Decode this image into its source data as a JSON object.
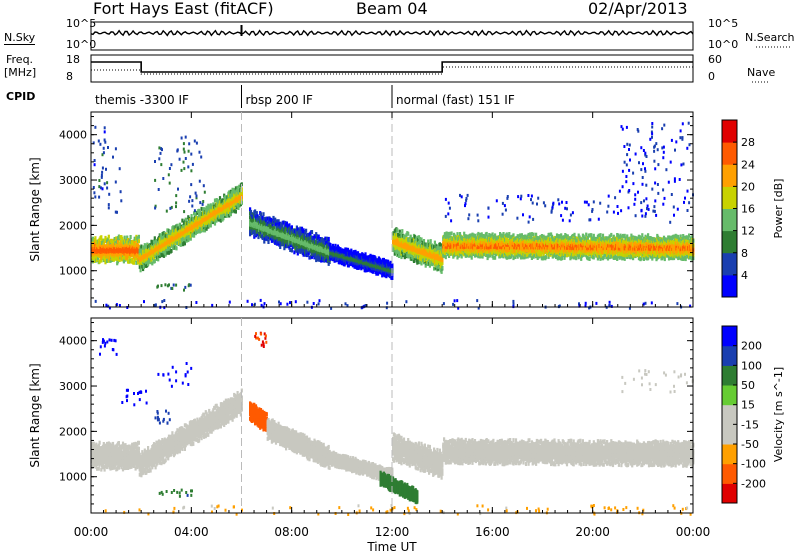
{
  "header": {
    "station": "Fort Hays East (fitACF)",
    "beam": "Beam 04",
    "date": "02/Apr/2013"
  },
  "noise_panel": {
    "left_label": "N.Sky",
    "right_label": "N.Search",
    "left_ticks": [
      "10^5",
      "10^0"
    ],
    "right_ticks": [
      "10^5",
      "10^0"
    ]
  },
  "freq_panel": {
    "left_label_line1": "Freq.",
    "left_label_line2": "[MHz]",
    "right_label": "Nave",
    "left_ticks": [
      "18",
      "8"
    ],
    "right_ticks": [
      "60",
      "0"
    ],
    "cpid_label": "CPID"
  },
  "cpid_segments": [
    {
      "label": "themis -3300 IF",
      "start_hour": 0,
      "end_hour": 6
    },
    {
      "label": "rbsp 200 IF",
      "start_hour": 6,
      "end_hour": 12
    },
    {
      "label": "normal (fast) 151 IF",
      "start_hour": 12,
      "end_hour": 24
    }
  ],
  "colors": {
    "power": [
      "#0000ff",
      "#1a3fb0",
      "#2e7d32",
      "#66bb6a",
      "#c8d200",
      "#ffa000",
      "#ff5a00",
      "#e00000"
    ],
    "velocity": [
      "#e00000",
      "#ff5a00",
      "#ffa000",
      "#c8c8c0",
      "#c8c8c0",
      "#66cc33",
      "#2e7d32",
      "#1a3fb0",
      "#0000ff"
    ]
  },
  "chart_data": [
    {
      "type": "heatmap",
      "name": "power",
      "ylabel": "Slant Range [km]",
      "xlabel": "Time UT",
      "x_ticks": [
        "00:00",
        "04:00",
        "08:00",
        "12:00",
        "16:00",
        "20:00",
        "00:00"
      ],
      "y_ticks": [
        1000,
        2000,
        3000,
        4000
      ],
      "ylim": [
        200,
        4500
      ],
      "xlim_hours": [
        0,
        24
      ],
      "colorbar_label": "Power [dB]",
      "colorbar_ticks": [
        4,
        8,
        12,
        16,
        20,
        24,
        28
      ],
      "bands": [
        {
          "t0": 0.0,
          "t1": 1.9,
          "r0": 1500,
          "r1": 1500,
          "width": 500,
          "value": 26
        },
        {
          "t0": 1.9,
          "t1": 6.0,
          "r0": 1300,
          "r1": 2700,
          "width": 450,
          "value": 22
        },
        {
          "t0": 6.3,
          "t1": 9.5,
          "r0": 2100,
          "r1": 1450,
          "width": 500,
          "value": 14
        },
        {
          "t0": 9.5,
          "t1": 12.0,
          "r0": 1450,
          "r1": 1050,
          "width": 300,
          "value": 10
        },
        {
          "t0": 12.0,
          "t1": 14.0,
          "r0": 1700,
          "r1": 1300,
          "width": 500,
          "value": 22
        },
        {
          "t0": 14.0,
          "t1": 24.0,
          "r0": 1600,
          "r1": 1550,
          "width": 450,
          "value": 24
        }
      ],
      "patches": [
        {
          "t0": 0.0,
          "t1": 1.2,
          "r0": 2300,
          "r1": 4200,
          "value": 6
        },
        {
          "t0": 2.5,
          "t1": 4.5,
          "r0": 2300,
          "r1": 4000,
          "value": 8
        },
        {
          "t0": 2.6,
          "t1": 4.0,
          "r0": 600,
          "r1": 750,
          "value": 8
        },
        {
          "t0": 14.0,
          "t1": 24.0,
          "r0": 2100,
          "r1": 2700,
          "value": 4
        },
        {
          "t0": 21.0,
          "t1": 24.0,
          "r0": 2700,
          "r1": 4300,
          "value": 4
        },
        {
          "t0": 0.0,
          "t1": 24.0,
          "r0": 200,
          "r1": 380,
          "value": 4
        }
      ]
    },
    {
      "type": "heatmap",
      "name": "velocity",
      "ylabel": "Slant Range [km]",
      "xlabel": "Time UT",
      "x_ticks": [
        "00:00",
        "04:00",
        "08:00",
        "12:00",
        "16:00",
        "20:00",
        "00:00"
      ],
      "y_ticks": [
        1000,
        2000,
        3000,
        4000
      ],
      "ylim": [
        200,
        4500
      ],
      "xlim_hours": [
        0,
        24
      ],
      "colorbar_label": "Velocity [m s^-1]",
      "colorbar_ticks": [
        -200,
        -100,
        -50,
        -15,
        15,
        50,
        100,
        200
      ],
      "bands": [
        {
          "t0": 0.0,
          "t1": 1.9,
          "r0": 1500,
          "r1": 1500,
          "width": 500,
          "value": 0
        },
        {
          "t0": 1.9,
          "t1": 6.0,
          "r0": 1300,
          "r1": 2700,
          "width": 450,
          "value": 0
        },
        {
          "t0": 6.3,
          "t1": 7.0,
          "r0": 2500,
          "r1": 2200,
          "width": 350,
          "value": -160
        },
        {
          "t0": 7.0,
          "t1": 9.5,
          "r0": 2100,
          "r1": 1450,
          "width": 400,
          "value": 0
        },
        {
          "t0": 9.5,
          "t1": 12.0,
          "r0": 1450,
          "r1": 1050,
          "width": 250,
          "value": 0
        },
        {
          "t0": 11.5,
          "t1": 13.0,
          "r0": 1000,
          "r1": 600,
          "width": 250,
          "value": 40
        },
        {
          "t0": 12.0,
          "t1": 14.0,
          "r0": 1700,
          "r1": 1300,
          "width": 500,
          "value": 0
        },
        {
          "t0": 14.0,
          "t1": 24.0,
          "r0": 1600,
          "r1": 1550,
          "width": 450,
          "value": 0
        }
      ],
      "patches": [
        {
          "t0": 0.2,
          "t1": 1.0,
          "r0": 3700,
          "r1": 4100,
          "value": 180
        },
        {
          "t0": 1.2,
          "t1": 2.2,
          "r0": 2600,
          "r1": 3000,
          "value": 180
        },
        {
          "t0": 2.5,
          "t1": 4.0,
          "r0": 3000,
          "r1": 3600,
          "value": 200
        },
        {
          "t0": 2.5,
          "t1": 3.2,
          "r0": 2200,
          "r1": 2500,
          "value": 70
        },
        {
          "t0": 2.6,
          "t1": 4.0,
          "r0": 600,
          "r1": 750,
          "value": 40
        },
        {
          "t0": 6.5,
          "t1": 7.0,
          "r0": 3900,
          "r1": 4200,
          "value": -200
        },
        {
          "t0": 21.0,
          "t1": 24.0,
          "r0": 2900,
          "r1": 3400,
          "value": 0
        },
        {
          "t0": 0.0,
          "t1": 24.0,
          "r0": 200,
          "r1": 400,
          "value": -60
        }
      ]
    }
  ]
}
